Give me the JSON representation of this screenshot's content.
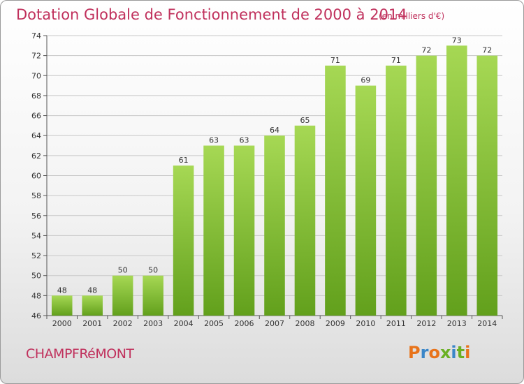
{
  "header": {
    "title": "Dotation Globale de Fonctionnement de 2000 à 2014",
    "unit": "(en milliers d'€)"
  },
  "footer": {
    "commune": "CHAMPFRéMONT",
    "logo": "Proxiti",
    "logo_colors": [
      "#e8731a",
      "#3a86c8",
      "#e8731a",
      "#6ab023",
      "#3a86c8",
      "#6ab023",
      "#e8731a"
    ]
  },
  "colors": {
    "title": "#c0305c",
    "bar_light": "#a6d854",
    "bar_dark": "#62a01c",
    "grid": "#c8c8c8"
  },
  "chart_data": {
    "type": "bar",
    "title": "Dotation Globale de Fonctionnement de 2000 à 2014",
    "subtitle": "(en milliers d'€)",
    "xlabel": "",
    "ylabel": "",
    "categories": [
      "2000",
      "2001",
      "2002",
      "2003",
      "2004",
      "2005",
      "2006",
      "2007",
      "2008",
      "2009",
      "2010",
      "2011",
      "2012",
      "2013",
      "2014"
    ],
    "values": [
      48,
      48,
      50,
      50,
      61,
      63,
      63,
      64,
      65,
      71,
      69,
      71,
      72,
      73,
      72
    ],
    "ylim": [
      46,
      74
    ],
    "yticks": [
      46,
      48,
      50,
      52,
      54,
      56,
      58,
      60,
      62,
      64,
      66,
      68,
      70,
      72,
      74
    ],
    "grid": true,
    "legend": "none",
    "data_labels": true
  }
}
